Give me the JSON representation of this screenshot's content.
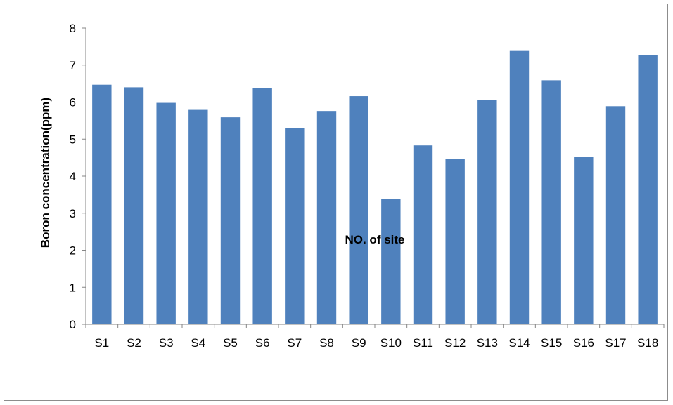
{
  "chart_data": {
    "type": "bar",
    "title": "",
    "xlabel": "NO. of site",
    "ylabel": "Boron concentration(ppm)",
    "categories": [
      "S1",
      "S2",
      "S3",
      "S4",
      "S5",
      "S6",
      "S7",
      "S8",
      "S9",
      "S10",
      "S11",
      "S12",
      "S13",
      "S14",
      "S15",
      "S16",
      "S17",
      "S18"
    ],
    "values": [
      6.47,
      6.4,
      5.98,
      5.79,
      5.59,
      6.38,
      5.29,
      5.76,
      6.16,
      3.38,
      4.83,
      4.47,
      6.06,
      7.4,
      6.59,
      4.53,
      5.89,
      7.27
    ],
    "ylim": [
      0,
      8
    ],
    "yticks": [
      0,
      1,
      2,
      3,
      4,
      5,
      6,
      7,
      8
    ],
    "grid": false,
    "legend": "none",
    "bar_color": "#4f81bd",
    "axis_color": "#868686"
  }
}
